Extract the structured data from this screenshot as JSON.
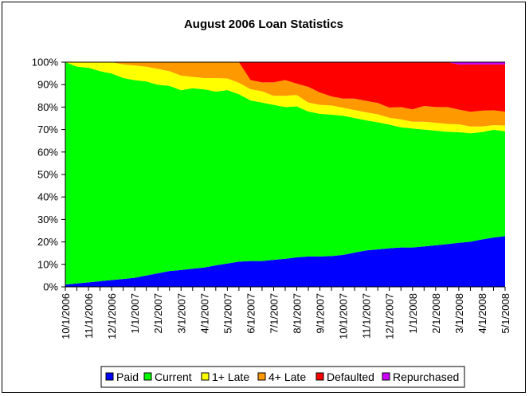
{
  "chart_data": {
    "type": "area",
    "stacked": "percent",
    "title": "August 2006 Loan Statistics",
    "xlabel": "",
    "ylabel": "",
    "ylim": [
      0,
      100
    ],
    "y_ticks": [
      "0%",
      "10%",
      "20%",
      "30%",
      "40%",
      "50%",
      "60%",
      "70%",
      "80%",
      "90%",
      "100%"
    ],
    "x_tick_labels": [
      "10/1/2006",
      "11/1/2006",
      "12/1/2006",
      "1/1/2007",
      "2/1/2007",
      "3/1/2007",
      "4/1/2007",
      "5/1/2007",
      "6/1/2007",
      "7/1/2007",
      "8/1/2007",
      "9/1/2007",
      "10/1/2007",
      "11/1/2007",
      "12/1/2007",
      "1/1/2008",
      "2/1/2008",
      "3/1/2008",
      "4/1/2008",
      "5/1/2008"
    ],
    "points_per_month": 2,
    "legend_position": "bottom",
    "grid": false,
    "series": [
      {
        "name": "Paid",
        "color": "#0000FF",
        "values": [
          1,
          1.5,
          2,
          2.5,
          3,
          3.5,
          4,
          5,
          6,
          7,
          7.5,
          8,
          8.5,
          9.5,
          10,
          11,
          11.5,
          11.5,
          12,
          12.5,
          13,
          13.5,
          13.5,
          13.5,
          14,
          15,
          16,
          16.5,
          17,
          17.5,
          17.5,
          18,
          18.5,
          19,
          19.5,
          20,
          21,
          21.5,
          22
        ]
      },
      {
        "name": "Current",
        "color": "#00FF00",
        "values": [
          99,
          96.5,
          95.5,
          93.5,
          91,
          89,
          87.5,
          85.5,
          83.5,
          82,
          80,
          79.5,
          78.5,
          76.5,
          74.5,
          73,
          71.5,
          70.5,
          69,
          67.5,
          66.5,
          64.5,
          63.5,
          62,
          61,
          59,
          57,
          56,
          54.5,
          53.5,
          53,
          52,
          51,
          50,
          49,
          48,
          47.5,
          47,
          45.5
        ]
      },
      {
        "name": "1+ Late",
        "color": "#FFFF00",
        "values": [
          0,
          2,
          2.5,
          4,
          5,
          6,
          6.5,
          6.5,
          7,
          6.5,
          6.5,
          5,
          5,
          6,
          5,
          5,
          5,
          5,
          4,
          5,
          5,
          4,
          4,
          4,
          3.5,
          3.5,
          3.5,
          3.5,
          3,
          3.5,
          3,
          3.5,
          3.5,
          3.5,
          3.5,
          3,
          2.5,
          2,
          2.5
        ]
      },
      {
        "name": "4+ Late",
        "color": "#FF9900",
        "values": [
          0,
          0,
          0,
          0,
          0,
          1,
          1.5,
          2,
          3,
          4,
          6,
          6.5,
          7,
          7,
          7,
          9,
          4,
          4,
          6,
          7,
          5,
          7,
          5.5,
          4,
          4,
          5,
          5,
          5,
          4.5,
          5.5,
          5.5,
          7,
          7,
          7.5,
          6.5,
          6.5,
          7,
          6.5,
          6
        ]
      },
      {
        "name": "Defaulted",
        "color": "#FF0000",
        "values": [
          0,
          0,
          0,
          0,
          0,
          0,
          0,
          0,
          0,
          0,
          0,
          0,
          0,
          0,
          0,
          0,
          8,
          9,
          9,
          8,
          9.5,
          11,
          13.5,
          15,
          16,
          16,
          17,
          18,
          20,
          20,
          21,
          19.5,
          20,
          20,
          20,
          21,
          20.5,
          20,
          20.5
        ]
      },
      {
        "name": "Repurchased",
        "color": "#CC00FF",
        "values": [
          0,
          0,
          0,
          0,
          0,
          0,
          0,
          0,
          0,
          0,
          0,
          0,
          0,
          0,
          0,
          0,
          0,
          0,
          0,
          0,
          0,
          0,
          0,
          0,
          0,
          0,
          0,
          0,
          0,
          0,
          0,
          0,
          0,
          0,
          1,
          1,
          1,
          1,
          1
        ]
      }
    ]
  }
}
